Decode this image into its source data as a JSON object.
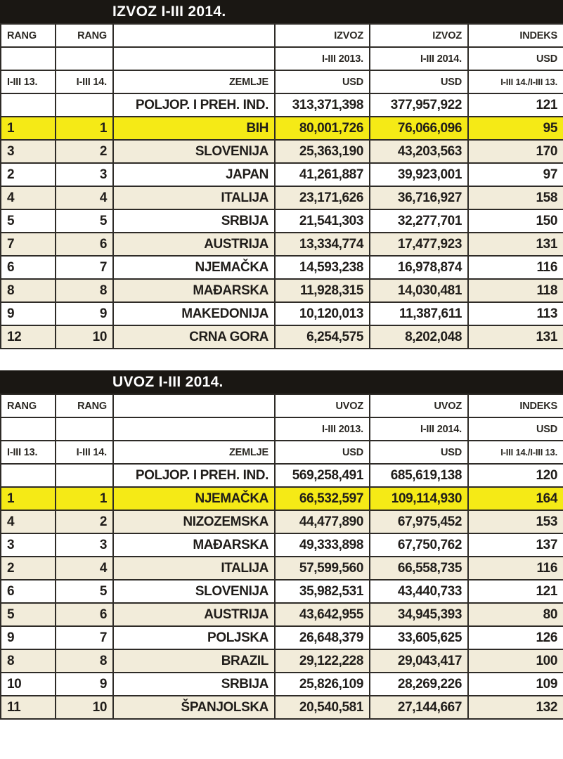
{
  "colors": {
    "header_bar_bg": "#1a1713",
    "header_bar_text": "#ffffff",
    "row_alt_bg": "#f2ecda",
    "row_white_bg": "#ffffff",
    "highlight_bg": "#f5ea16",
    "border": "#2e2b27",
    "text": "#201d1a"
  },
  "chart_data": [
    {
      "type": "table",
      "title": "IZVOZ I-III 2014.",
      "header_rows": [
        [
          "RANG",
          "RANG",
          "",
          "IZVOZ",
          "IZVOZ",
          "INDEKS"
        ],
        [
          "",
          "",
          "",
          "I-III 2013.",
          "I-III 2014.",
          "USD"
        ],
        [
          "I-III 13.",
          "I-III 14.",
          "ZEMLJE",
          "USD",
          "USD",
          "I-III 14./I-III 13."
        ]
      ],
      "rows": [
        {
          "rank_prev": "",
          "rank_curr": "",
          "country": "POLJOP. I PREH. IND.",
          "usd_2013": "313,371,398",
          "usd_2014": "377,957,922",
          "index": "121",
          "style": "white"
        },
        {
          "rank_prev": "1",
          "rank_curr": "1",
          "country": "BIH",
          "usd_2013": "80,001,726",
          "usd_2014": "76,066,096",
          "index": "95",
          "style": "highlight"
        },
        {
          "rank_prev": "3",
          "rank_curr": "2",
          "country": "SLOVENIJA",
          "usd_2013": "25,363,190",
          "usd_2014": "43,203,563",
          "index": "170",
          "style": "alt"
        },
        {
          "rank_prev": "2",
          "rank_curr": "3",
          "country": "JAPAN",
          "usd_2013": "41,261,887",
          "usd_2014": "39,923,001",
          "index": "97",
          "style": "white"
        },
        {
          "rank_prev": "4",
          "rank_curr": "4",
          "country": "ITALIJA",
          "usd_2013": "23,171,626",
          "usd_2014": "36,716,927",
          "index": "158",
          "style": "alt"
        },
        {
          "rank_prev": "5",
          "rank_curr": "5",
          "country": "SRBIJA",
          "usd_2013": "21,541,303",
          "usd_2014": "32,277,701",
          "index": "150",
          "style": "white"
        },
        {
          "rank_prev": "7",
          "rank_curr": "6",
          "country": "AUSTRIJA",
          "usd_2013": "13,334,774",
          "usd_2014": "17,477,923",
          "index": "131",
          "style": "alt"
        },
        {
          "rank_prev": "6",
          "rank_curr": "7",
          "country": "NJEMAČKA",
          "usd_2013": "14,593,238",
          "usd_2014": "16,978,874",
          "index": "116",
          "style": "white"
        },
        {
          "rank_prev": "8",
          "rank_curr": "8",
          "country": "MAĐARSKA",
          "usd_2013": "11,928,315",
          "usd_2014": "14,030,481",
          "index": "118",
          "style": "alt"
        },
        {
          "rank_prev": "9",
          "rank_curr": "9",
          "country": "MAKEDONIJA",
          "usd_2013": "10,120,013",
          "usd_2014": "11,387,611",
          "index": "113",
          "style": "white"
        },
        {
          "rank_prev": "12",
          "rank_curr": "10",
          "country": "CRNA GORA",
          "usd_2013": "6,254,575",
          "usd_2014": "8,202,048",
          "index": "131",
          "style": "alt"
        }
      ]
    },
    {
      "type": "table",
      "title": "UVOZ I-III 2014.",
      "header_rows": [
        [
          "RANG",
          "RANG",
          "",
          "UVOZ",
          "UVOZ",
          "INDEKS"
        ],
        [
          "",
          "",
          "",
          "I-III 2013.",
          "I-III 2014.",
          "USD"
        ],
        [
          "I-III 13.",
          "I-III 14.",
          "ZEMLJE",
          "USD",
          "USD",
          "I-III 14./I-III 13."
        ]
      ],
      "rows": [
        {
          "rank_prev": "",
          "rank_curr": "",
          "country": "POLJOP. I PREH. IND.",
          "usd_2013": "569,258,491",
          "usd_2014": "685,619,138",
          "index": "120",
          "style": "white"
        },
        {
          "rank_prev": "1",
          "rank_curr": "1",
          "country": "NJEMAČKA",
          "usd_2013": "66,532,597",
          "usd_2014": "109,114,930",
          "index": "164",
          "style": "highlight"
        },
        {
          "rank_prev": "4",
          "rank_curr": "2",
          "country": "NIZOZEMSKA",
          "usd_2013": "44,477,890",
          "usd_2014": "67,975,452",
          "index": "153",
          "style": "alt"
        },
        {
          "rank_prev": "3",
          "rank_curr": "3",
          "country": "MAĐARSKA",
          "usd_2013": "49,333,898",
          "usd_2014": "67,750,762",
          "index": "137",
          "style": "white"
        },
        {
          "rank_prev": "2",
          "rank_curr": "4",
          "country": "ITALIJA",
          "usd_2013": "57,599,560",
          "usd_2014": "66,558,735",
          "index": "116",
          "style": "alt"
        },
        {
          "rank_prev": "6",
          "rank_curr": "5",
          "country": "SLOVENIJA",
          "usd_2013": "35,982,531",
          "usd_2014": "43,440,733",
          "index": "121",
          "style": "white"
        },
        {
          "rank_prev": "5",
          "rank_curr": "6",
          "country": "AUSTRIJA",
          "usd_2013": "43,642,955",
          "usd_2014": "34,945,393",
          "index": "80",
          "style": "alt"
        },
        {
          "rank_prev": "9",
          "rank_curr": "7",
          "country": "POLJSKA",
          "usd_2013": "26,648,379",
          "usd_2014": "33,605,625",
          "index": "126",
          "style": "white"
        },
        {
          "rank_prev": "8",
          "rank_curr": "8",
          "country": "BRAZIL",
          "usd_2013": "29,122,228",
          "usd_2014": "29,043,417",
          "index": "100",
          "style": "alt"
        },
        {
          "rank_prev": "10",
          "rank_curr": "9",
          "country": "SRBIJA",
          "usd_2013": "25,826,109",
          "usd_2014": "28,269,226",
          "index": "109",
          "style": "white"
        },
        {
          "rank_prev": "11",
          "rank_curr": "10",
          "country": "ŠPANJOLSKA",
          "usd_2013": "20,540,581",
          "usd_2014": "27,144,667",
          "index": "132",
          "style": "alt"
        }
      ]
    }
  ]
}
